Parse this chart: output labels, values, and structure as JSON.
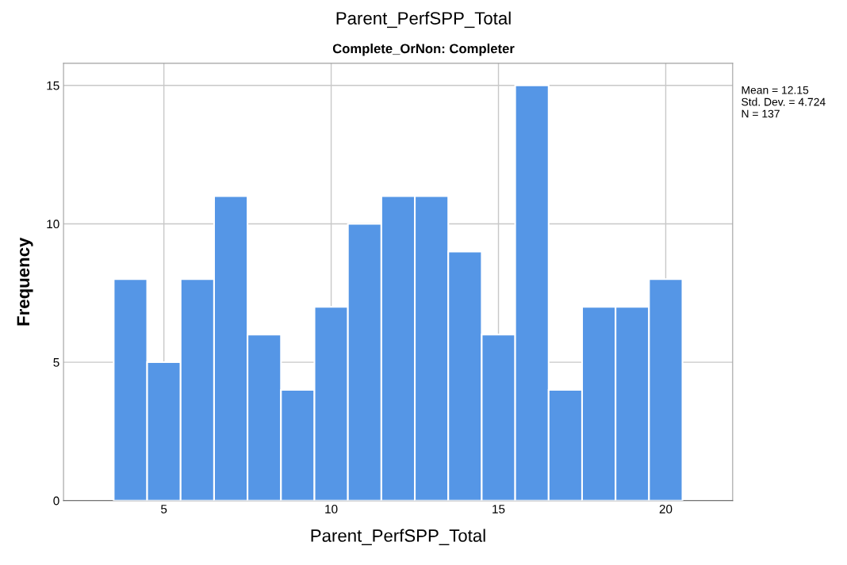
{
  "chart_data": {
    "type": "histogram",
    "title": "Parent_PerfSPP_Total",
    "subtitle": "Complete_OrNon: Completer",
    "xlabel": "Parent_PerfSPP_Total",
    "ylabel": "Frequency",
    "bins": [
      3.5,
      4.5,
      5.5,
      6.5,
      7.5,
      8.5,
      9.5,
      10.5,
      11.5,
      12.5,
      13.5,
      14.5,
      15.5,
      16.5,
      17.5,
      18.5,
      19.5,
      20.5
    ],
    "values": [
      8,
      5,
      8,
      11,
      6,
      4,
      7,
      10,
      11,
      11,
      9,
      6,
      15,
      4,
      7,
      7,
      8
    ],
    "color": "#5596e6",
    "xlim": [
      2,
      22
    ],
    "xticks": [
      5,
      10,
      15,
      20
    ],
    "ylim": [
      0,
      15.8
    ],
    "yticks": [
      0,
      5,
      10,
      15
    ],
    "grid": true,
    "annotations": [
      "Mean = 12.15\nStd. Dev. = 4.724\nN = 137"
    ]
  }
}
